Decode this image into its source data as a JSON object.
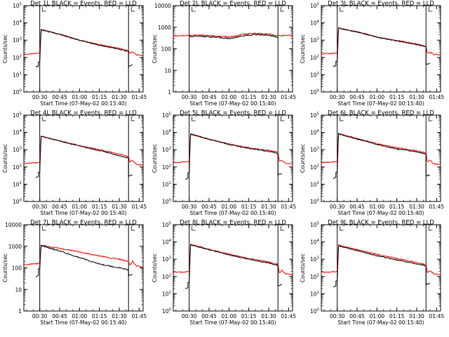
{
  "chart_data": [
    {
      "type": "line",
      "title": "Det 1L BLACK = Events, RED = LLD",
      "xlabel": "Start Time (07-May-02 00:15:40)",
      "ylabel": "Counts/sec",
      "yscale": "log",
      "ylim": [
        1,
        100000
      ],
      "ytick_style": "exp",
      "ytick_labels": [
        "10^0",
        "10^1",
        "10^2",
        "10^3",
        "10^4",
        "10^5"
      ],
      "xtick_labels": [
        "00:30",
        "00:45",
        "01:00",
        "01:15",
        "01:30",
        "01:45"
      ],
      "vlines": [
        "00:30",
        "01:37"
      ],
      "series": [
        {
          "name": "Events",
          "color": "#000000",
          "x": [
            "00:27",
            "00:29",
            "00:29",
            "00:30",
            "00:31",
            "00:45",
            "01:00",
            "01:15",
            "01:30",
            "01:37",
            "01:37",
            "01:39",
            "01:40"
          ],
          "y": [
            28,
            32,
            55,
            55,
            4000,
            2200,
            1000,
            500,
            300,
            220,
            30,
            35,
            38
          ]
        },
        {
          "name": "LLD",
          "color": "#ff0000",
          "x": [
            "00:18",
            "00:25",
            "00:29",
            "00:30",
            "00:31",
            "00:45",
            "01:00",
            "01:15",
            "01:30",
            "01:37",
            "01:38",
            "01:40",
            "01:43",
            "01:48"
          ],
          "y": [
            150,
            160,
            180,
            200,
            4000,
            2200,
            1000,
            550,
            330,
            240,
            170,
            220,
            140,
            130
          ]
        }
      ]
    },
    {
      "type": "line",
      "title": "Det 2L BLACK = Events, RED = LLD",
      "xlabel": "Start Time (07-May-02 00:15:40)",
      "ylabel": "Counts/sec",
      "yscale": "log",
      "ylim": [
        1,
        10000
      ],
      "ytick_style": "plain",
      "ytick_labels": [
        "1",
        "10",
        "100",
        "1000",
        "10000"
      ],
      "xtick_labels": [
        "00:30",
        "00:45",
        "01:00",
        "01:15",
        "01:30",
        "01:45"
      ],
      "vlines": [
        "00:30",
        "01:37"
      ],
      "series": [
        {
          "name": "Events",
          "color": "#000000",
          "x": [
            "00:30",
            "00:40",
            "00:50",
            "01:00",
            "01:05",
            "01:10",
            "01:20",
            "01:30",
            "01:37"
          ],
          "y": [
            380,
            380,
            340,
            300,
            330,
            400,
            460,
            430,
            340
          ]
        },
        {
          "name": "LLD",
          "color": "#ff0000",
          "x": [
            "00:18",
            "00:30",
            "00:40",
            "00:50",
            "01:00",
            "01:05",
            "01:10",
            "01:20",
            "01:30",
            "01:37",
            "01:40",
            "01:48"
          ],
          "y": [
            400,
            420,
            430,
            380,
            350,
            380,
            460,
            520,
            480,
            400,
            420,
            400
          ]
        }
      ]
    },
    {
      "type": "line",
      "title": "Det 3L BLACK = Events, RED = LLD",
      "xlabel": "Start Time (07-May-02 00:15:40)",
      "ylabel": "Counts/sec",
      "yscale": "log",
      "ylim": [
        1,
        100000
      ],
      "ytick_style": "exp",
      "ytick_labels": [
        "10^0",
        "10^1",
        "10^2",
        "10^3",
        "10^4",
        "10^5"
      ],
      "xtick_labels": [
        "00:30",
        "00:45",
        "01:00",
        "01:15",
        "01:30",
        "01:45"
      ],
      "vlines": [
        "00:30",
        "01:37"
      ],
      "series": [
        {
          "name": "Events",
          "color": "#000000",
          "x": [
            "00:27",
            "00:29",
            "00:29",
            "00:30",
            "00:31",
            "00:45",
            "01:00",
            "01:15",
            "01:30",
            "01:37",
            "01:37",
            "01:40"
          ],
          "y": [
            30,
            33,
            60,
            60,
            5000,
            3000,
            1500,
            900,
            550,
            420,
            40,
            45
          ]
        },
        {
          "name": "LLD",
          "color": "#ff0000",
          "x": [
            "00:18",
            "00:25",
            "00:29",
            "00:30",
            "00:31",
            "00:45",
            "01:00",
            "01:15",
            "01:30",
            "01:37",
            "01:38",
            "01:40",
            "01:43",
            "01:48"
          ],
          "y": [
            160,
            170,
            180,
            200,
            5000,
            3000,
            1500,
            950,
            600,
            450,
            180,
            200,
            150,
            140
          ]
        }
      ]
    },
    {
      "type": "line",
      "title": "Det 4L BLACK = Events, RED = LLD",
      "xlabel": "Start Time (07-May-02 00:15:40)",
      "ylabel": "Counts/sec",
      "yscale": "log",
      "ylim": [
        1,
        100000
      ],
      "ytick_style": "exp",
      "ytick_labels": [
        "10^0",
        "10^1",
        "10^2",
        "10^3",
        "10^4",
        "10^5"
      ],
      "xtick_labels": [
        "00:30",
        "00:45",
        "01:00",
        "01:15",
        "01:30",
        "01:45"
      ],
      "vlines": [
        "00:30",
        "01:37"
      ],
      "series": [
        {
          "name": "Events",
          "color": "#000000",
          "x": [
            "00:27",
            "00:29",
            "00:29",
            "00:30",
            "00:31",
            "00:45",
            "01:00",
            "01:15",
            "01:30",
            "01:37",
            "01:37",
            "01:40"
          ],
          "y": [
            25,
            28,
            50,
            50,
            6000,
            3200,
            1600,
            900,
            450,
            330,
            30,
            35
          ]
        },
        {
          "name": "LLD",
          "color": "#ff0000",
          "x": [
            "00:18",
            "00:25",
            "00:29",
            "00:30",
            "00:31",
            "00:45",
            "01:00",
            "01:15",
            "01:30",
            "01:37",
            "01:38",
            "01:40",
            "01:43",
            "01:48"
          ],
          "y": [
            160,
            170,
            180,
            200,
            6000,
            3200,
            1700,
            1000,
            550,
            400,
            200,
            230,
            140,
            130
          ]
        }
      ]
    },
    {
      "type": "line",
      "title": "Det 5L BLACK = Events, RED = LLD",
      "xlabel": "Start Time (07-May-02 00:15:40)",
      "ylabel": "Counts/sec",
      "yscale": "log",
      "ylim": [
        1,
        100000
      ],
      "ytick_style": "exp",
      "ytick_labels": [
        "10^0",
        "10^1",
        "10^2",
        "10^3",
        "10^4",
        "10^5"
      ],
      "xtick_labels": [
        "00:30",
        "00:45",
        "01:00",
        "01:15",
        "01:30",
        "01:45"
      ],
      "vlines": [
        "00:30",
        "01:37"
      ],
      "series": [
        {
          "name": "Events",
          "color": "#000000",
          "x": [
            "00:27",
            "00:29",
            "00:29",
            "00:30",
            "00:31",
            "00:45",
            "01:00",
            "01:15",
            "01:30",
            "01:37",
            "01:37",
            "01:40"
          ],
          "y": [
            20,
            22,
            45,
            45,
            8000,
            4000,
            2000,
            1200,
            800,
            600,
            35,
            40
          ]
        },
        {
          "name": "LLD",
          "color": "#ff0000",
          "x": [
            "00:18",
            "00:25",
            "00:29",
            "00:30",
            "00:31",
            "00:45",
            "01:00",
            "01:15",
            "01:30",
            "01:37",
            "01:38",
            "01:40",
            "01:43",
            "01:48"
          ],
          "y": [
            180,
            190,
            200,
            220,
            8000,
            4000,
            2100,
            1300,
            900,
            700,
            220,
            230,
            160,
            150
          ]
        }
      ]
    },
    {
      "type": "line",
      "title": "Det 6L BLACK = Events, RED = LLD",
      "xlabel": "Start Time (07-May-02 00:15:40)",
      "ylabel": "Counts/sec",
      "yscale": "log",
      "ylim": [
        1,
        100000
      ],
      "ytick_style": "exp",
      "ytick_labels": [
        "10^0",
        "10^1",
        "10^2",
        "10^3",
        "10^4",
        "10^5"
      ],
      "xtick_labels": [
        "00:30",
        "00:45",
        "01:00",
        "01:15",
        "01:30",
        "01:45"
      ],
      "vlines": [
        "00:30",
        "01:37"
      ],
      "series": [
        {
          "name": "Events",
          "color": "#000000",
          "x": [
            "00:27",
            "00:29",
            "00:29",
            "00:30",
            "00:31",
            "00:45",
            "01:00",
            "01:15",
            "01:30",
            "01:37",
            "01:37",
            "01:40"
          ],
          "y": [
            22,
            25,
            50,
            50,
            8000,
            4200,
            2000,
            1100,
            750,
            550,
            30,
            35
          ]
        },
        {
          "name": "LLD",
          "color": "#ff0000",
          "x": [
            "00:18",
            "00:25",
            "00:29",
            "00:30",
            "00:31",
            "00:45",
            "01:00",
            "01:15",
            "01:30",
            "01:37",
            "01:38",
            "01:40",
            "01:43",
            "01:48"
          ],
          "y": [
            180,
            190,
            200,
            220,
            8500,
            4500,
            2200,
            1300,
            850,
            650,
            200,
            250,
            150,
            140
          ]
        }
      ]
    },
    {
      "type": "line",
      "title": "Det 7L BLACK = Events, RED = LLD",
      "xlabel": "Start Time (07-May-02 00:15:40)",
      "ylabel": "Counts/sec",
      "yscale": "log",
      "ylim": [
        1,
        10000
      ],
      "ytick_style": "plain",
      "ytick_labels": [
        "1",
        "10",
        "100",
        "1000",
        "10000"
      ],
      "xtick_labels": [
        "00:30",
        "00:45",
        "01:00",
        "01:15",
        "01:30",
        "01:45"
      ],
      "vlines": [
        "00:30",
        "01:37"
      ],
      "series": [
        {
          "name": "Events",
          "color": "#000000",
          "x": [
            "00:27",
            "00:29",
            "00:29",
            "00:30",
            "00:31",
            "00:45",
            "01:00",
            "01:15",
            "01:30",
            "01:37",
            "01:37",
            "01:40"
          ],
          "y": [
            40,
            45,
            90,
            90,
            1100,
            600,
            300,
            150,
            100,
            80,
            45,
            50
          ]
        },
        {
          "name": "LLD",
          "color": "#ff0000",
          "x": [
            "00:18",
            "00:25",
            "00:29",
            "00:30",
            "00:31",
            "00:45",
            "01:00",
            "01:15",
            "01:30",
            "01:37",
            "01:38",
            "01:40",
            "01:43",
            "01:48"
          ],
          "y": [
            140,
            150,
            160,
            180,
            1100,
            800,
            550,
            350,
            250,
            200,
            130,
            200,
            120,
            110
          ]
        }
      ]
    },
    {
      "type": "line",
      "title": "Det 8L BLACK = Events, RED = LLD",
      "xlabel": "Start Time (07-May-02 00:15:40)",
      "ylabel": "Counts/sec",
      "yscale": "log",
      "ylim": [
        1,
        100000
      ],
      "ytick_style": "exp",
      "ytick_labels": [
        "10^0",
        "10^1",
        "10^2",
        "10^3",
        "10^4",
        "10^5"
      ],
      "xtick_labels": [
        "00:30",
        "00:45",
        "01:00",
        "01:15",
        "01:30",
        "01:45"
      ],
      "vlines": [
        "00:30",
        "01:37"
      ],
      "series": [
        {
          "name": "Events",
          "color": "#000000",
          "x": [
            "00:27",
            "00:29",
            "00:29",
            "00:30",
            "00:31",
            "00:45",
            "01:00",
            "01:15",
            "01:30",
            "01:37",
            "01:37",
            "01:40"
          ],
          "y": [
            20,
            22,
            45,
            45,
            7000,
            3500,
            1800,
            1000,
            600,
            450,
            30,
            35
          ]
        },
        {
          "name": "LLD",
          "color": "#ff0000",
          "x": [
            "00:18",
            "00:25",
            "00:29",
            "00:30",
            "00:31",
            "00:45",
            "01:00",
            "01:15",
            "01:30",
            "01:37",
            "01:38",
            "01:40",
            "01:43",
            "01:48"
          ],
          "y": [
            170,
            180,
            190,
            210,
            7500,
            3800,
            2000,
            1100,
            700,
            500,
            160,
            220,
            140,
            130
          ]
        }
      ]
    },
    {
      "type": "line",
      "title": "Det 9L BLACK = Events, RED = LLD",
      "xlabel": "Start Time (07-May-02 00:15:40)",
      "ylabel": "Counts/sec",
      "yscale": "log",
      "ylim": [
        1,
        100000
      ],
      "ytick_style": "exp",
      "ytick_labels": [
        "10^0",
        "10^1",
        "10^2",
        "10^3",
        "10^4",
        "10^5"
      ],
      "xtick_labels": [
        "00:30",
        "00:45",
        "01:00",
        "01:15",
        "01:30",
        "01:45"
      ],
      "vlines": [
        "00:30",
        "01:37"
      ],
      "series": [
        {
          "name": "Events",
          "color": "#000000",
          "x": [
            "00:27",
            "00:29",
            "00:29",
            "00:30",
            "00:31",
            "00:45",
            "01:00",
            "01:15",
            "01:30",
            "01:37",
            "01:37",
            "01:40"
          ],
          "y": [
            25,
            28,
            55,
            55,
            6000,
            3200,
            1600,
            900,
            550,
            420,
            35,
            40
          ]
        },
        {
          "name": "LLD",
          "color": "#ff0000",
          "x": [
            "00:18",
            "00:25",
            "00:29",
            "00:30",
            "00:31",
            "00:45",
            "01:00",
            "01:15",
            "01:30",
            "01:37",
            "01:38",
            "01:40",
            "01:43",
            "01:48"
          ],
          "y": [
            170,
            180,
            190,
            210,
            6500,
            3600,
            1900,
            1100,
            650,
            480,
            170,
            220,
            140,
            130
          ]
        }
      ]
    }
  ]
}
